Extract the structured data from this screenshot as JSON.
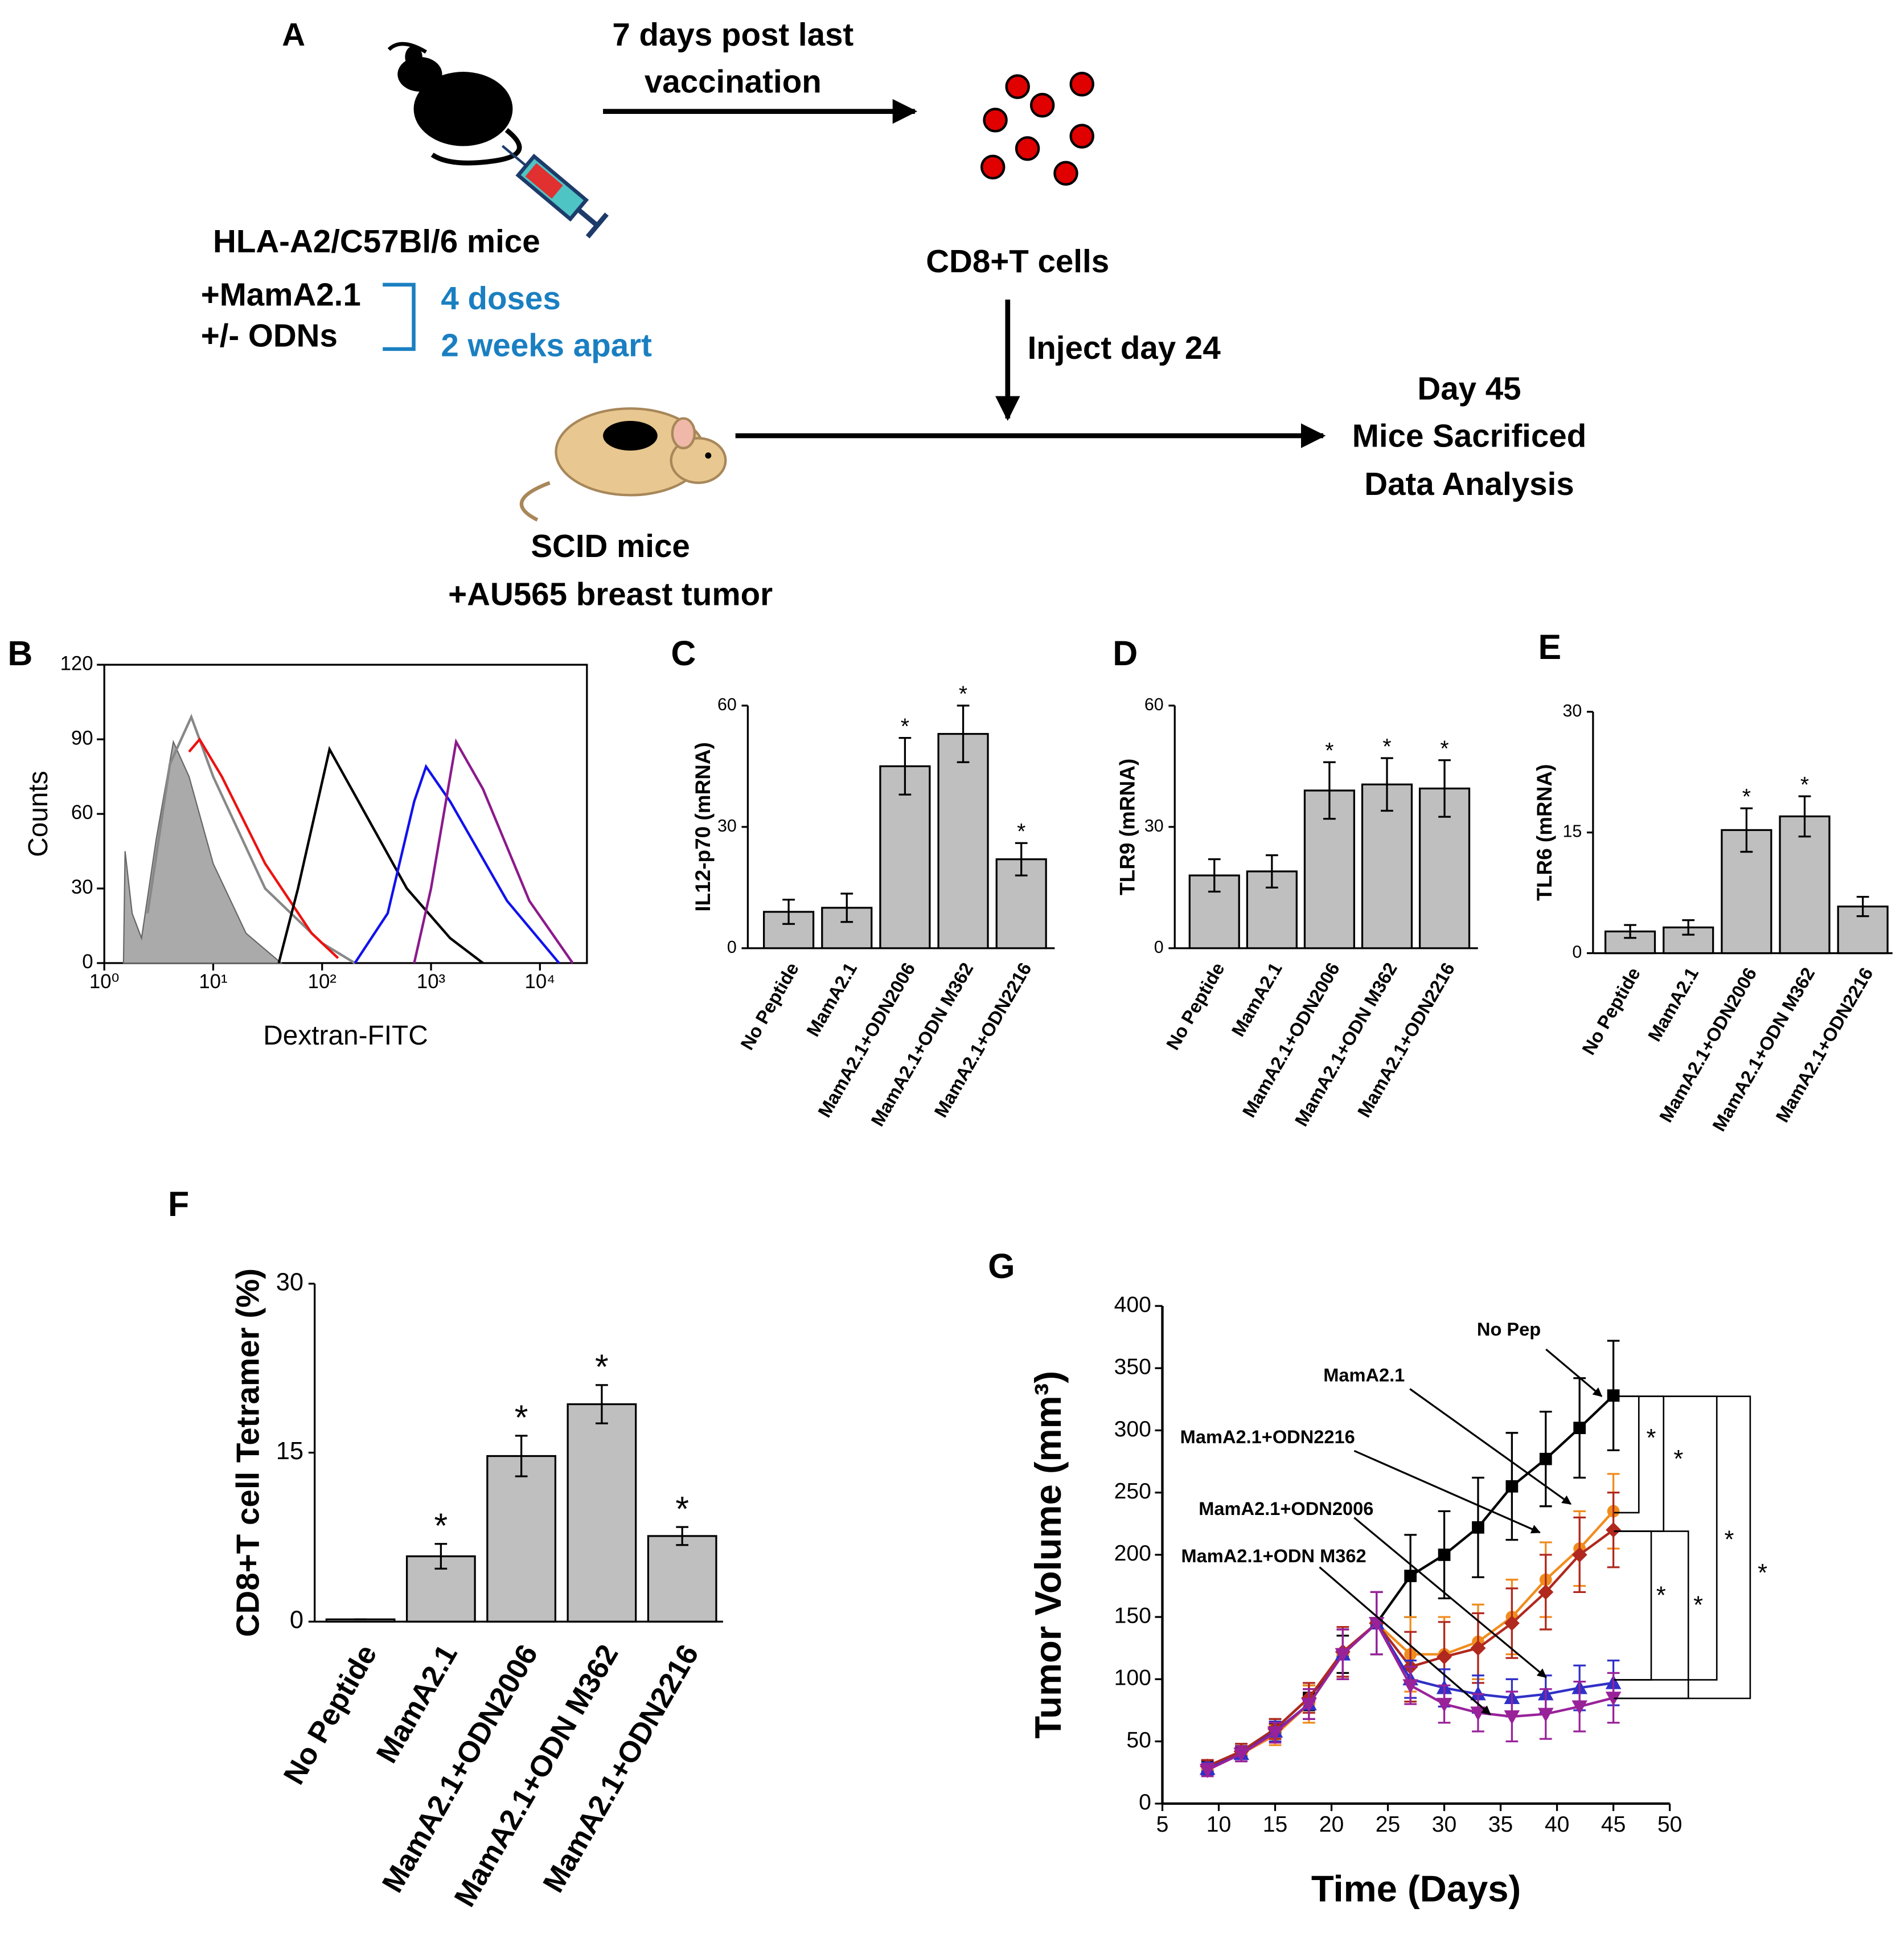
{
  "diagram": {
    "label": "A",
    "arrow1": [
      "7 days post last",
      "vaccination"
    ],
    "donor": {
      "title": "HLA-A2/C57Bl/6 mice",
      "treatments": [
        "+MamA2.1",
        "+/- ODNs"
      ],
      "schedule": [
        "4 doses",
        "2 weeks apart"
      ]
    },
    "cells": "CD8+T cells",
    "arrow2": "Inject day 24",
    "recipient": [
      "SCID mice",
      "+AU565 breast tumor"
    ],
    "endpoint": [
      "Day 45",
      "Mice Sacrificed",
      "Data Analysis"
    ]
  },
  "chart_data": [
    {
      "type": "line",
      "label": "B",
      "x_label": "Dextran-FITC",
      "y_label": "Counts",
      "log_x": true,
      "xlim": [
        1,
        27000
      ],
      "xticks": [
        {
          "value": 1,
          "label": "10⁰"
        },
        {
          "value": 10,
          "label": "10¹"
        },
        {
          "value": 100,
          "label": "10²"
        },
        {
          "value": 1000,
          "label": "10³"
        },
        {
          "value": 10000,
          "label": "10⁴"
        }
      ],
      "ylim": [
        0,
        120
      ],
      "yticks": [
        0,
        30,
        60,
        90,
        120
      ],
      "series": [
        {
          "color": "#aaaaaa",
          "fill": true,
          "x": [
            1.5,
            1.55,
            1.8,
            2.2,
            3,
            4.3,
            6,
            10,
            20,
            42
          ],
          "values": [
            0,
            45,
            20,
            10,
            50,
            89,
            75,
            40,
            12,
            0
          ]
        },
        {
          "color": "#888888",
          "x": [
            2.5,
            4,
            6.3,
            10,
            30,
            100,
            200
          ],
          "values": [
            20,
            80,
            99,
            75,
            30,
            8,
            0
          ]
        },
        {
          "color": "#ee1111",
          "x": [
            6,
            7.5,
            12,
            30,
            80,
            140
          ],
          "values": [
            85,
            90,
            75,
            40,
            12,
            2
          ]
        },
        {
          "color": "#000000",
          "x": [
            40,
            60,
            117,
            250,
            600,
            1500,
            3000
          ],
          "values": [
            0,
            30,
            86,
            60,
            30,
            10,
            0
          ]
        },
        {
          "color": "#1111ee",
          "x": [
            200,
            400,
            700,
            900,
            1500,
            5000,
            15000
          ],
          "values": [
            0,
            20,
            65,
            79,
            65,
            25,
            0
          ]
        },
        {
          "color": "#8b1a8b",
          "x": [
            700,
            1000,
            1700,
            3000,
            8000,
            20000
          ],
          "values": [
            0,
            30,
            89,
            70,
            25,
            0
          ]
        }
      ]
    },
    {
      "type": "bar",
      "label": "C",
      "y_label": "IL12-p70 (mRNA)",
      "color": "#bfbfbf",
      "categories": [
        "No Peptide",
        "MamA2.1",
        "MamA2.1+ODN2006",
        "MamA2.1+ODN M362",
        "MamA2.1+ODN2216"
      ],
      "values": [
        9,
        10,
        45,
        53,
        22
      ],
      "errors": [
        3,
        3.5,
        7,
        7,
        4
      ],
      "significance": [
        null,
        null,
        "*",
        "*",
        "*"
      ],
      "ylim": [
        0,
        60
      ],
      "yticks": [
        0,
        30,
        60
      ]
    },
    {
      "type": "bar",
      "label": "D",
      "y_label": "TLR9 (mRNA)",
      "color": "#bfbfbf",
      "categories": [
        "No Peptide",
        "MamA2.1",
        "MamA2.1+ODN2006",
        "MamA2.1+ODN M362",
        "MamA2.1+ODN2216"
      ],
      "values": [
        18,
        19,
        39,
        40.5,
        39.5
      ],
      "errors": [
        4,
        4,
        7,
        6.5,
        7
      ],
      "significance": [
        null,
        null,
        "*",
        "*",
        "*"
      ],
      "ylim": [
        0,
        60
      ],
      "yticks": [
        0,
        30,
        60
      ]
    },
    {
      "type": "bar",
      "label": "E",
      "y_label": "TLR6 (mRNA)",
      "color": "#bfbfbf",
      "categories": [
        "No Peptide",
        "MamA2.1",
        "MamA2.1+ODN2006",
        "MamA2.1+ODN M362",
        "MamA2.1+ODN2216"
      ],
      "values": [
        2.7,
        3.2,
        15.3,
        17,
        5.8
      ],
      "errors": [
        0.8,
        0.9,
        2.7,
        2.5,
        1.2
      ],
      "significance": [
        null,
        null,
        "*",
        "*",
        null
      ],
      "ylim": [
        0,
        30
      ],
      "yticks": [
        0,
        15,
        30
      ]
    },
    {
      "type": "bar",
      "label": "F",
      "y_label": "CD8+T cell Tetramer (%)",
      "color": "#bfbfbf",
      "categories": [
        "No Peptide",
        "MamA2.1",
        "MamA2.1+ODN2006",
        "MamA2.1+ODN M362",
        "MamA2.1+ODN2216"
      ],
      "values": [
        0.2,
        5.8,
        14.7,
        19.3,
        7.6
      ],
      "errors": [
        0,
        1.1,
        1.8,
        1.7,
        0.8
      ],
      "significance": [
        null,
        "*",
        "*",
        "*",
        "*"
      ],
      "ylim": [
        0,
        30
      ],
      "yticks": [
        0,
        15,
        30
      ]
    },
    {
      "type": "line",
      "label": "G",
      "x_label": "Time (Days)",
      "y_label": "Tumor Volume (mm³)",
      "xlim": [
        5,
        50
      ],
      "xticks": [
        5,
        10,
        15,
        20,
        25,
        30,
        35,
        40,
        45,
        50
      ],
      "ylim": [
        0,
        400
      ],
      "yticks": [
        0,
        50,
        100,
        150,
        200,
        250,
        300,
        350,
        400
      ],
      "significance_marks": [
        "*",
        "*",
        "*",
        "*",
        "*",
        "*"
      ],
      "series": [
        {
          "name": "No Pep",
          "color": "#000000",
          "marker": "square",
          "x": [
            9,
            12,
            15,
            18,
            21,
            24,
            27,
            30,
            33,
            36,
            39,
            42,
            45
          ],
          "values": [
            30,
            42,
            60,
            85,
            120,
            145,
            183,
            200,
            222,
            255,
            277,
            302,
            328
          ],
          "errors": [
            5,
            6,
            8,
            10,
            15,
            25,
            33,
            35,
            40,
            43,
            38,
            40,
            44
          ]
        },
        {
          "name": "MamA2.1",
          "color": "#f08c1e",
          "marker": "circle",
          "x": [
            9,
            12,
            15,
            18,
            21,
            24,
            27,
            30,
            33,
            36,
            39,
            42,
            45
          ],
          "values": [
            28,
            40,
            55,
            80,
            120,
            145,
            120,
            120,
            130,
            150,
            180,
            205,
            235
          ],
          "errors": [
            5,
            6,
            8,
            15,
            20,
            25,
            30,
            30,
            30,
            30,
            30,
            30,
            30
          ]
        },
        {
          "name": "MamA2.1+ODN2216",
          "color": "#b0281e",
          "marker": "diamond",
          "x": [
            9,
            12,
            15,
            18,
            21,
            24,
            27,
            30,
            33,
            36,
            39,
            42,
            45
          ],
          "values": [
            30,
            42,
            60,
            85,
            122,
            145,
            110,
            118,
            125,
            145,
            170,
            200,
            220
          ],
          "errors": [
            5,
            6,
            8,
            12,
            20,
            25,
            28,
            28,
            28,
            28,
            30,
            30,
            30
          ]
        },
        {
          "name": "MamA2.1+ODN2006",
          "color": "#3030c8",
          "marker": "triangle",
          "x": [
            9,
            12,
            15,
            18,
            21,
            24,
            27,
            30,
            33,
            36,
            39,
            42,
            45
          ],
          "values": [
            28,
            40,
            58,
            80,
            120,
            145,
            100,
            93,
            88,
            85,
            88,
            93,
            97
          ],
          "errors": [
            5,
            6,
            8,
            12,
            20,
            25,
            15,
            15,
            15,
            15,
            15,
            18,
            18
          ]
        },
        {
          "name": "MamA2.1+ODN M362",
          "color": "#992299",
          "marker": "triangle-down",
          "x": [
            9,
            12,
            15,
            18,
            21,
            24,
            27,
            30,
            33,
            36,
            39,
            42,
            45
          ],
          "values": [
            27,
            40,
            57,
            80,
            120,
            145,
            95,
            80,
            73,
            70,
            72,
            78,
            85
          ],
          "errors": [
            5,
            6,
            8,
            12,
            20,
            25,
            15,
            15,
            15,
            20,
            20,
            20,
            20
          ]
        }
      ]
    }
  ]
}
